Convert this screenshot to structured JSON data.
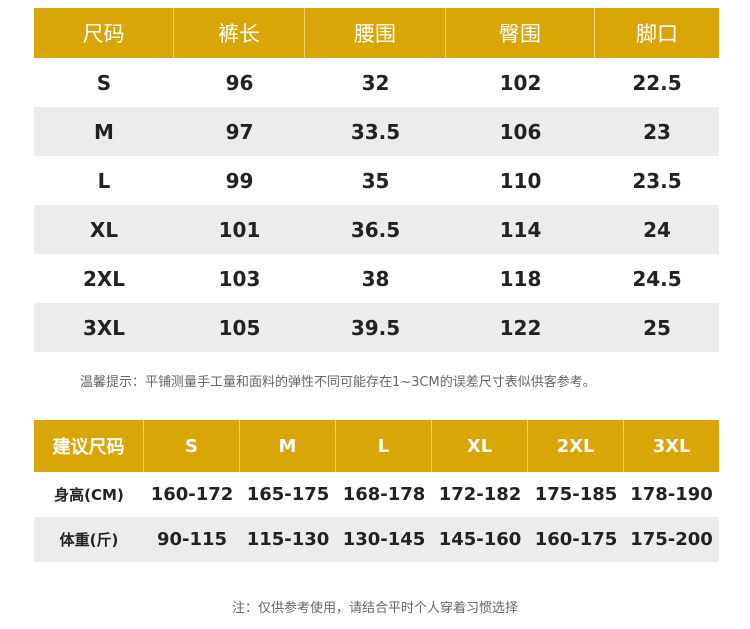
{
  "size_table": {
    "headers": [
      "尺码",
      "裤长",
      "腰围",
      "臀围",
      "脚口"
    ],
    "rows": [
      [
        "S",
        "96",
        "32",
        "102",
        "22.5"
      ],
      [
        "M",
        "97",
        "33.5",
        "106",
        "23"
      ],
      [
        "L",
        "99",
        "35",
        "110",
        "23.5"
      ],
      [
        "XL",
        "101",
        "36.5",
        "114",
        "24"
      ],
      [
        "2XL",
        "103",
        "38",
        "118",
        "24.5"
      ],
      [
        "3XL",
        "105",
        "39.5",
        "122",
        "25"
      ]
    ]
  },
  "tip": "温馨提示：平铺测量手工量和面料的弹性不同可能存在1~3CM的误差尺寸表似供客参考。",
  "recommend_table": {
    "headers": [
      "建议尺码",
      "S",
      "M",
      "L",
      "XL",
      "2XL",
      "3XL"
    ],
    "rows": [
      [
        "身高(CM)",
        "160-172",
        "165-175",
        "168-178",
        "172-182",
        "175-185",
        "178-190"
      ],
      [
        "体重(斤)",
        "90-115",
        "115-130",
        "130-145",
        "145-160",
        "160-175",
        "175-200"
      ]
    ]
  },
  "note": "注：仅供参考使用，请结合平时个人穿着习惯选择",
  "colors": {
    "header_bg": "#d9a507",
    "stripe_bg": "#ececec"
  }
}
